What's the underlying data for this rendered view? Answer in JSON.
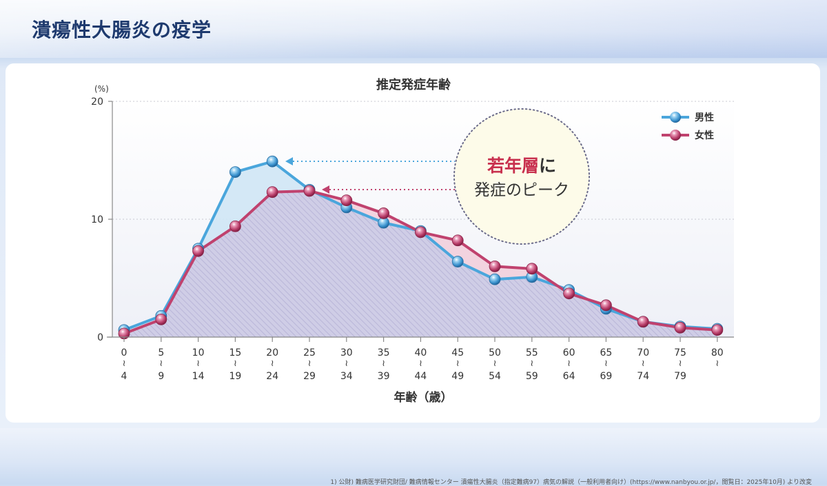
{
  "page": {
    "title": "潰瘍性大腸炎の疫学"
  },
  "footnote": "1) 公財) 難病医学研究財団/ 難病情報センター 潰瘍性大腸炎（指定難病97）病気の解説（一般利用者向け）(https://www.nanbyou.or.jp/，閲覧日：2025年10月) より改変",
  "callout": {
    "highlight": "若年層",
    "line1_rest": "に",
    "line2": "発症のピーク"
  },
  "colors": {
    "male": "#4aa6dc",
    "female": "#c0426e",
    "title": "#1e3a6e",
    "callout_highlight": "#c8304e",
    "callout_bg": "#fdfbe9"
  },
  "chart_data": {
    "type": "line",
    "title": "推定発症年齢",
    "xlabel": "年齢（歳）",
    "ylabel": "(%)",
    "ylim": [
      0,
      20
    ],
    "yticks": [
      0,
      10,
      20
    ],
    "grid": true,
    "legend_position": "top-right",
    "categories": [
      "0〜4",
      "5〜9",
      "10〜14",
      "15〜19",
      "20〜24",
      "25〜29",
      "30〜34",
      "35〜39",
      "40〜44",
      "45〜49",
      "50〜54",
      "55〜59",
      "60〜64",
      "65〜69",
      "70〜74",
      "75〜79",
      "80〜"
    ],
    "x_tick_top": [
      "0",
      "5",
      "10",
      "15",
      "20",
      "25",
      "30",
      "35",
      "40",
      "45",
      "50",
      "55",
      "60",
      "65",
      "70",
      "75",
      "80"
    ],
    "x_tick_bottom": [
      "4",
      "9",
      "14",
      "19",
      "24",
      "29",
      "34",
      "39",
      "44",
      "49",
      "54",
      "59",
      "64",
      "69",
      "74",
      "79",
      ""
    ],
    "series": [
      {
        "name": "男性",
        "color": "#4aa6dc",
        "values": [
          0.6,
          1.8,
          7.5,
          14.0,
          14.9,
          12.5,
          11.0,
          9.7,
          9.0,
          6.4,
          4.9,
          5.1,
          4.0,
          2.4,
          1.3,
          0.9,
          0.7
        ]
      },
      {
        "name": "女性",
        "color": "#c0426e",
        "values": [
          0.3,
          1.5,
          7.3,
          9.4,
          12.3,
          12.4,
          11.6,
          10.5,
          8.9,
          8.2,
          6.0,
          5.8,
          3.7,
          2.7,
          1.3,
          0.8,
          0.6
        ]
      }
    ],
    "annotations": [
      {
        "text": "若年層に発症のピーク",
        "points_to": [
          "男性 20〜24",
          "女性 25〜29"
        ]
      }
    ]
  }
}
